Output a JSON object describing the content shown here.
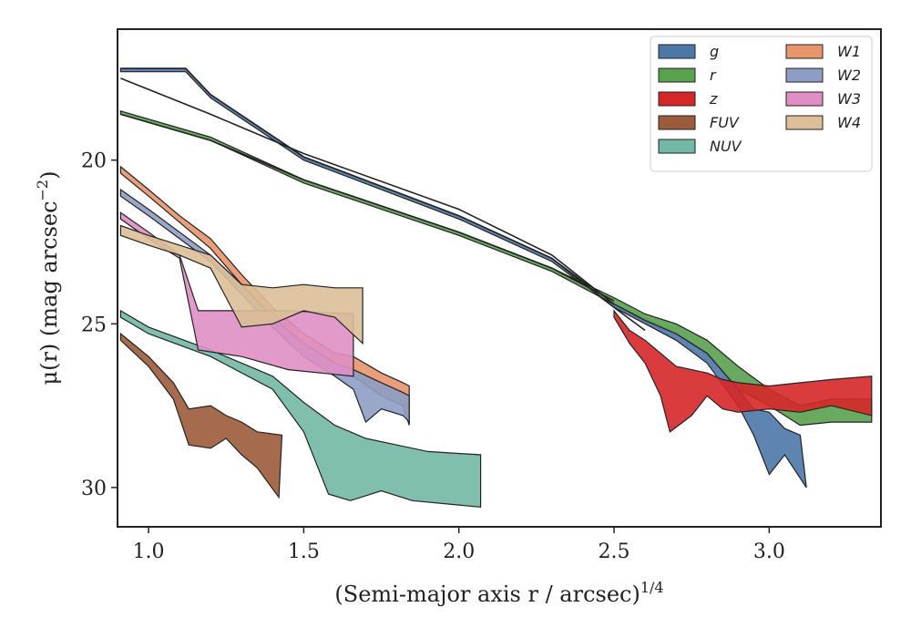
{
  "chart_data": {
    "type": "area",
    "xlabel": "(Semi-major axis r / arcsec)",
    "xlabel_exponent": "1/4",
    "ylabel": "μ(r) (mag arcsec",
    "ylabel_exponent": "−2",
    "ylabel_close": ")",
    "xlim": [
      0.9,
      3.36
    ],
    "ylim": [
      31.2,
      16.0
    ],
    "y_inverted": true,
    "xticks": [
      1.0,
      1.5,
      2.0,
      2.5,
      3.0
    ],
    "xtick_labels": [
      "1.0",
      "1.5",
      "2.0",
      "2.5",
      "3.0"
    ],
    "yticks": [
      20,
      25,
      30
    ],
    "ytick_labels": [
      "20",
      "25",
      "30"
    ],
    "grid": false,
    "legend_position": "top-right",
    "legend_columns": 2,
    "series": [
      {
        "name": "g",
        "color": "#4c78a8",
        "upper": [
          [
            0.91,
            17.2
          ],
          [
            1.12,
            17.2
          ],
          [
            1.2,
            18.0
          ],
          [
            1.5,
            19.9
          ],
          [
            2.0,
            21.7
          ],
          [
            2.3,
            23.0
          ],
          [
            2.5,
            24.4
          ],
          [
            2.7,
            25.3
          ],
          [
            2.8,
            25.9
          ],
          [
            2.9,
            27.0
          ],
          [
            2.95,
            27.6
          ],
          [
            3.0,
            27.7
          ],
          [
            3.05,
            28.2
          ],
          [
            3.1,
            28.4
          ]
        ],
        "lower": [
          [
            0.91,
            17.3
          ],
          [
            1.12,
            17.3
          ],
          [
            1.2,
            18.1
          ],
          [
            1.5,
            20.0
          ],
          [
            2.0,
            21.8
          ],
          [
            2.3,
            23.1
          ],
          [
            2.5,
            24.5
          ],
          [
            2.7,
            25.5
          ],
          [
            2.8,
            26.2
          ],
          [
            2.9,
            27.5
          ],
          [
            2.95,
            28.4
          ],
          [
            3.0,
            29.6
          ],
          [
            3.05,
            29.0
          ],
          [
            3.12,
            30.0
          ]
        ]
      },
      {
        "name": "r",
        "color": "#59a14f",
        "upper": [
          [
            0.91,
            18.5
          ],
          [
            1.2,
            19.3
          ],
          [
            1.5,
            20.6
          ],
          [
            2.0,
            22.2
          ],
          [
            2.3,
            23.3
          ],
          [
            2.5,
            24.2
          ],
          [
            2.6,
            24.7
          ],
          [
            2.7,
            25.0
          ],
          [
            2.8,
            25.5
          ],
          [
            2.9,
            26.3
          ],
          [
            3.0,
            27.0
          ],
          [
            3.1,
            27.5
          ],
          [
            3.2,
            27.3
          ],
          [
            3.33,
            27.3
          ]
        ],
        "lower": [
          [
            0.91,
            18.6
          ],
          [
            1.2,
            19.4
          ],
          [
            1.5,
            20.7
          ],
          [
            2.0,
            22.3
          ],
          [
            2.3,
            23.4
          ],
          [
            2.5,
            24.4
          ],
          [
            2.6,
            24.9
          ],
          [
            2.7,
            25.3
          ],
          [
            2.8,
            25.9
          ],
          [
            2.9,
            27.0
          ],
          [
            3.0,
            27.5
          ],
          [
            3.1,
            28.1
          ],
          [
            3.2,
            28.0
          ],
          [
            3.33,
            28.0
          ]
        ]
      },
      {
        "name": "z",
        "color": "#d62728",
        "upper": [
          [
            2.5,
            24.6
          ],
          [
            2.55,
            25.2
          ],
          [
            2.6,
            25.5
          ],
          [
            2.65,
            25.9
          ],
          [
            2.7,
            26.3
          ],
          [
            2.75,
            26.4
          ],
          [
            2.8,
            26.5
          ],
          [
            2.85,
            26.7
          ],
          [
            2.9,
            26.8
          ],
          [
            3.0,
            26.9
          ],
          [
            3.1,
            26.8
          ],
          [
            3.2,
            26.7
          ],
          [
            3.33,
            26.6
          ]
        ],
        "lower": [
          [
            2.5,
            24.8
          ],
          [
            2.55,
            25.6
          ],
          [
            2.6,
            26.2
          ],
          [
            2.65,
            27.2
          ],
          [
            2.68,
            28.3
          ],
          [
            2.75,
            27.8
          ],
          [
            2.8,
            27.2
          ],
          [
            2.85,
            27.6
          ],
          [
            2.9,
            27.7
          ],
          [
            3.0,
            27.6
          ],
          [
            3.1,
            27.7
          ],
          [
            3.2,
            27.5
          ],
          [
            3.33,
            27.8
          ]
        ]
      },
      {
        "name": "FUV",
        "color": "#9c5b3a",
        "upper": [
          [
            0.91,
            25.3
          ],
          [
            1.0,
            26.0
          ],
          [
            1.08,
            26.8
          ],
          [
            1.13,
            27.6
          ],
          [
            1.2,
            27.5
          ],
          [
            1.25,
            27.8
          ],
          [
            1.3,
            28.0
          ],
          [
            1.35,
            28.3
          ],
          [
            1.43,
            28.4
          ]
        ],
        "lower": [
          [
            0.91,
            25.5
          ],
          [
            1.0,
            26.3
          ],
          [
            1.08,
            27.3
          ],
          [
            1.13,
            28.7
          ],
          [
            1.2,
            28.8
          ],
          [
            1.25,
            28.5
          ],
          [
            1.3,
            29.0
          ],
          [
            1.35,
            29.4
          ],
          [
            1.42,
            30.3
          ]
        ]
      },
      {
        "name": "NUV",
        "color": "#72b8a4",
        "upper": [
          [
            0.91,
            24.6
          ],
          [
            1.0,
            25.1
          ],
          [
            1.2,
            25.8
          ],
          [
            1.4,
            26.6
          ],
          [
            1.5,
            27.4
          ],
          [
            1.6,
            28.1
          ],
          [
            1.7,
            28.5
          ],
          [
            1.8,
            28.7
          ],
          [
            1.9,
            28.9
          ],
          [
            2.07,
            29.0
          ]
        ],
        "lower": [
          [
            0.91,
            24.8
          ],
          [
            1.0,
            25.3
          ],
          [
            1.2,
            26.0
          ],
          [
            1.4,
            27.0
          ],
          [
            1.5,
            28.3
          ],
          [
            1.58,
            30.2
          ],
          [
            1.65,
            30.4
          ],
          [
            1.75,
            30.1
          ],
          [
            1.85,
            30.4
          ],
          [
            2.07,
            30.6
          ]
        ]
      },
      {
        "name": "W1",
        "color": "#e8956b",
        "upper": [
          [
            0.91,
            20.2
          ],
          [
            1.0,
            20.9
          ],
          [
            1.1,
            21.7
          ],
          [
            1.2,
            22.4
          ],
          [
            1.3,
            23.5
          ],
          [
            1.4,
            24.5
          ],
          [
            1.5,
            25.3
          ],
          [
            1.6,
            25.9
          ],
          [
            1.66,
            26.0
          ],
          [
            1.75,
            26.5
          ],
          [
            1.82,
            26.8
          ],
          [
            1.84,
            26.9
          ]
        ],
        "lower": [
          [
            0.91,
            20.4
          ],
          [
            1.0,
            21.1
          ],
          [
            1.1,
            21.9
          ],
          [
            1.2,
            22.7
          ],
          [
            1.3,
            23.8
          ],
          [
            1.4,
            24.9
          ],
          [
            1.5,
            25.7
          ],
          [
            1.6,
            26.4
          ],
          [
            1.66,
            26.6
          ],
          [
            1.75,
            27.2
          ],
          [
            1.82,
            27.5
          ],
          [
            1.84,
            28.1
          ]
        ]
      },
      {
        "name": "W2",
        "color": "#8e9dc4",
        "upper": [
          [
            0.91,
            20.9
          ],
          [
            1.0,
            21.5
          ],
          [
            1.1,
            22.2
          ],
          [
            1.2,
            22.9
          ],
          [
            1.3,
            23.8
          ],
          [
            1.4,
            24.8
          ],
          [
            1.5,
            25.6
          ],
          [
            1.6,
            26.2
          ],
          [
            1.66,
            26.4
          ],
          [
            1.75,
            26.8
          ],
          [
            1.82,
            27.1
          ],
          [
            1.84,
            27.2
          ]
        ],
        "lower": [
          [
            0.91,
            21.1
          ],
          [
            1.0,
            21.7
          ],
          [
            1.1,
            22.4
          ],
          [
            1.2,
            23.1
          ],
          [
            1.3,
            24.1
          ],
          [
            1.4,
            25.1
          ],
          [
            1.5,
            26.0
          ],
          [
            1.6,
            26.6
          ],
          [
            1.66,
            27.0
          ],
          [
            1.7,
            28.0
          ],
          [
            1.75,
            27.6
          ],
          [
            1.82,
            27.8
          ],
          [
            1.84,
            28.0
          ]
        ]
      },
      {
        "name": "W3",
        "color": "#df8fc4",
        "upper": [
          [
            0.91,
            21.6
          ],
          [
            1.0,
            22.2
          ],
          [
            1.1,
            22.9
          ],
          [
            1.16,
            24.6
          ],
          [
            1.3,
            24.6
          ],
          [
            1.45,
            24.6
          ],
          [
            1.66,
            24.7
          ]
        ],
        "lower": [
          [
            0.91,
            21.8
          ],
          [
            1.0,
            22.4
          ],
          [
            1.1,
            23.0
          ],
          [
            1.16,
            25.8
          ],
          [
            1.3,
            26.0
          ],
          [
            1.45,
            26.4
          ],
          [
            1.66,
            26.6
          ]
        ]
      },
      {
        "name": "W4",
        "color": "#dcbf98",
        "upper": [
          [
            0.91,
            22.0
          ],
          [
            1.0,
            22.3
          ],
          [
            1.1,
            22.6
          ],
          [
            1.2,
            22.9
          ],
          [
            1.3,
            23.8
          ],
          [
            1.4,
            23.9
          ],
          [
            1.5,
            23.8
          ],
          [
            1.6,
            23.9
          ],
          [
            1.69,
            23.9
          ]
        ],
        "lower": [
          [
            0.91,
            22.3
          ],
          [
            1.0,
            22.6
          ],
          [
            1.1,
            22.9
          ],
          [
            1.2,
            23.3
          ],
          [
            1.3,
            25.1
          ],
          [
            1.4,
            25.0
          ],
          [
            1.5,
            24.6
          ],
          [
            1.6,
            24.8
          ],
          [
            1.69,
            25.6
          ]
        ]
      }
    ],
    "black_lines": [
      [
        [
          0.91,
          17.2
        ],
        [
          1.12,
          17.2
        ],
        [
          1.2,
          18.0
        ],
        [
          1.5,
          19.9
        ],
        [
          2.0,
          21.7
        ],
        [
          2.3,
          23.0
        ],
        [
          2.5,
          24.5
        ],
        [
          2.6,
          25.2
        ]
      ],
      [
        [
          0.91,
          17.5
        ],
        [
          1.2,
          18.6
        ],
        [
          1.5,
          19.8
        ],
        [
          2.0,
          21.5
        ],
        [
          2.3,
          22.9
        ],
        [
          2.5,
          24.4
        ]
      ],
      [
        [
          0.91,
          18.6
        ],
        [
          1.2,
          19.4
        ],
        [
          1.5,
          20.6
        ],
        [
          2.0,
          22.2
        ],
        [
          2.3,
          23.3
        ],
        [
          2.5,
          24.3
        ]
      ]
    ]
  }
}
